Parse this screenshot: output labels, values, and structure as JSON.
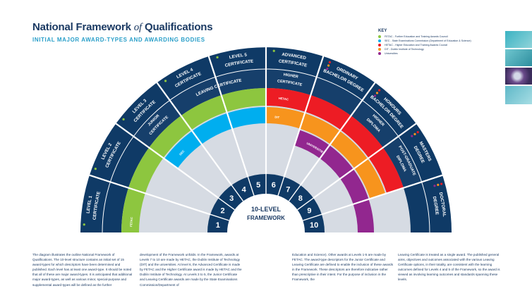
{
  "header": {
    "title_a": "National Framework ",
    "title_b": "of",
    "title_c": " Qualifications",
    "subtitle": "INITIAL MAJOR AWARD-TYPES AND AWARDING BODIES"
  },
  "key": {
    "title": "KEY",
    "items": [
      {
        "label": "FETAC - Further Education and Training Awards Council",
        "color": "#8dc63f"
      },
      {
        "label": "SEC - State Examinations Commission (Department of Education & Science)",
        "color": "#00aeef"
      },
      {
        "label": "HETAC - Higher Education and Training Awards Council",
        "color": "#ed1c24"
      },
      {
        "label": "DIT - Dublin Institute of Technology",
        "color": "#f7941d"
      },
      {
        "label": "Universities",
        "color": "#92278f"
      }
    ]
  },
  "diagram": {
    "center_label": [
      "10-LEVEL",
      "FRAMEWORK"
    ],
    "levels": [
      "1",
      "2",
      "3",
      "4",
      "5",
      "6",
      "7",
      "8",
      "9",
      "10"
    ],
    "awards": [
      {
        "lines": [
          "LEVEL 1",
          "CERTIFICATE"
        ]
      },
      {
        "lines": [
          "LEVEL 2",
          "CERTIFICATE"
        ]
      },
      {
        "lines": [
          "LEVEL 3",
          "CERTIFICATE"
        ]
      },
      {
        "lines": [
          "LEVEL 4",
          "CERTIFICATE"
        ]
      },
      {
        "lines": [
          "LEVEL 5",
          "CERTIFICATE"
        ]
      },
      {
        "lines": [
          "ADVANCED",
          "CERTIFICATE"
        ]
      },
      {
        "lines": [
          "ORDINARY",
          "BACHELOR DEGREE"
        ]
      },
      {
        "lines": [
          "HONOURS",
          "BACHELOR DEGREE"
        ]
      },
      {
        "lines": [
          "MASTERS",
          "DEGREE"
        ]
      },
      {
        "lines": [
          "DOCTORAL",
          "DEGREE"
        ]
      }
    ],
    "inner_awards": {
      "junior": [
        "JUNIOR",
        "CERTIFICATE"
      ],
      "leaving": "LEAVING CERTIFICATE",
      "higher": [
        "HIGHER",
        "CERTIFICATE"
      ],
      "higher_diploma": [
        "HIGHER",
        "DIPLOMA"
      ],
      "postgrad": [
        "POST-GRADUATE",
        "DIPLOMA"
      ]
    },
    "band_labels": {
      "fetac": "FETAC",
      "sec": "SEC",
      "hetac": "HETAC",
      "dit": "DIT",
      "universities": "UNIVERSITIES"
    }
  },
  "text_columns": [
    "The diagram illustrates the outline National Framework of Qualifications. The 10-level structure contains an initial set of 15 award-types for which descriptors have been determined and published. Each level has at least one award-type. It should be noted that all of these are major award-types. It is anticipated that additional major award-types, as well as various minor, special-purpose and supplemental award-types will be defined as the further",
    "development of the Framework unfolds. In the Framework, awards at Levels 7 to 10 are made by HETAC, the Dublin Institute of Technology (DIT) and the universities. At level 6, the Advanced Certificate is made by FETAC and the Higher Certificate award is made by HETAC and the Dublin Institute of Technology. At Levels 3 to 5, the Junior Certificate and Leaving Certificate awards are made by the State Examinations Commission/Department of",
    "Education and Science). Other awards at Levels 1-5 are made by FETAC. The award-type descriptors for the Junior Certificate and Leaving Certificate are defined to enable the inclusion of these awards in the Framework. These descriptors are therefore indicative rather than prescriptive in their intent. For the purpose of inclusion in the Framework, the",
    "Leaving Certificate is treated as a single award. The published general aims, objectives and outcomes associated with the various Leaving Certificate options, in their totality, are consistent with the learning outcomes defined for Levels 4 and 5 of the Framework, so the award is viewed as involving learning outcomes and standards spanning these levels."
  ]
}
